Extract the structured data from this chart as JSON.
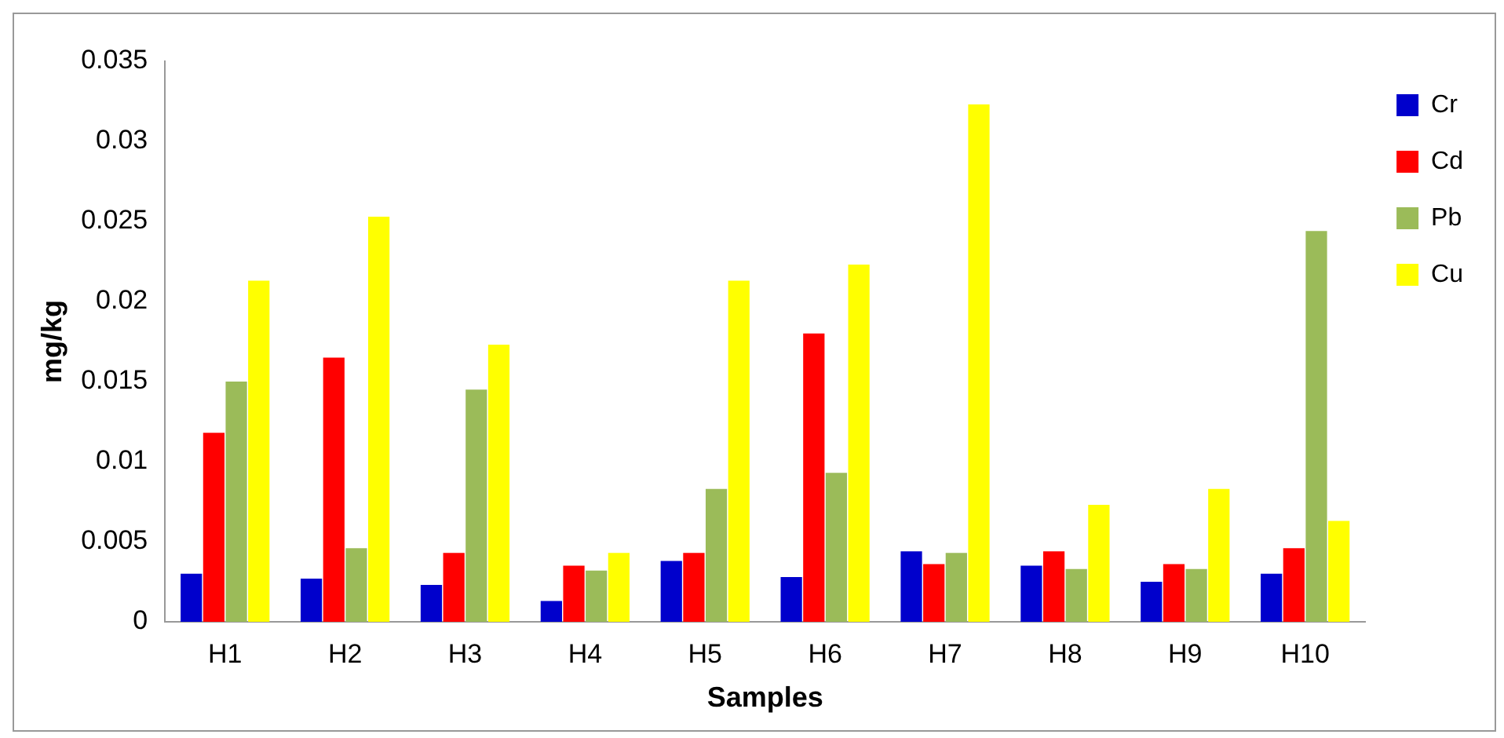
{
  "chart_data": {
    "type": "bar",
    "xlabel": "Samples",
    "ylabel": "mg/kg",
    "categories": [
      "H1",
      "H2",
      "H3",
      "H4",
      "H5",
      "H6",
      "H7",
      "H8",
      "H9",
      "H10"
    ],
    "series": [
      {
        "name": "Cr",
        "color": "#0000cc",
        "values": [
          0.003,
          0.0027,
          0.0023,
          0.0013,
          0.0038,
          0.0028,
          0.0044,
          0.0035,
          0.0025,
          0.003
        ]
      },
      {
        "name": "Cd",
        "color": "#ff0000",
        "values": [
          0.0118,
          0.0165,
          0.0043,
          0.0035,
          0.0043,
          0.018,
          0.0036,
          0.0044,
          0.0036,
          0.0046
        ]
      },
      {
        "name": "Pb",
        "color": "#9bbb59",
        "values": [
          0.015,
          0.0046,
          0.0145,
          0.0032,
          0.0083,
          0.0093,
          0.0043,
          0.0033,
          0.0033,
          0.0244
        ]
      },
      {
        "name": "Cu",
        "color": "#ffff00",
        "values": [
          0.0213,
          0.0253,
          0.0173,
          0.0043,
          0.0213,
          0.0223,
          0.0323,
          0.0073,
          0.0083,
          0.0063
        ]
      }
    ],
    "ylim": [
      0,
      0.035
    ],
    "yticks": [
      0,
      0.005,
      0.01,
      0.015,
      0.02,
      0.025,
      0.03,
      0.035
    ],
    "grid": false,
    "legend": "right"
  }
}
